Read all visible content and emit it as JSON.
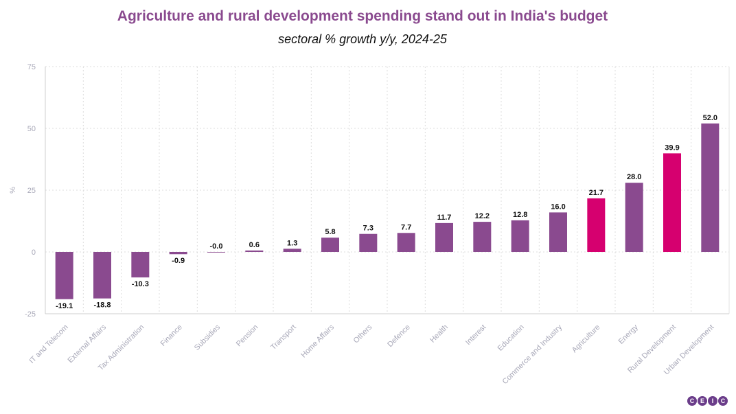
{
  "chart_data": {
    "type": "bar",
    "title": "Agriculture and rural development spending stand out in India's budget",
    "subtitle": "sectoral % growth y/y, 2024-25",
    "ylabel": "%",
    "xlabel": "",
    "ylim": [
      -25,
      75
    ],
    "yticks": [
      -25,
      0,
      25,
      50,
      75
    ],
    "grid": true,
    "categories": [
      "IT and Telecom",
      "External Affairs",
      "Tax Administration",
      "Finance",
      "Subsidies",
      "Pension",
      "Transport",
      "Home Affairs",
      "Others",
      "Defence",
      "Health",
      "Interest",
      "Education",
      "Commerce and Industry",
      "Agriculture",
      "Energy",
      "Rural Development",
      "Urban Development"
    ],
    "values": [
      -19.1,
      -18.8,
      -10.3,
      -0.9,
      -0.0,
      0.6,
      1.3,
      5.8,
      7.3,
      7.7,
      11.7,
      12.2,
      12.8,
      16.0,
      21.7,
      28.0,
      39.9,
      52.0
    ],
    "value_labels": [
      "-19.1",
      "-18.8",
      "-10.3",
      "-0.9",
      "-0.0",
      "0.6",
      "1.3",
      "5.8",
      "7.3",
      "7.7",
      "11.7",
      "12.2",
      "12.8",
      "16.0",
      "21.7",
      "28.0",
      "39.9",
      "52.0"
    ],
    "highlight": [
      "Agriculture",
      "Rural Development"
    ],
    "colors": {
      "default": "#8a4a8f",
      "highlight": "#d6006f"
    }
  },
  "logo": {
    "letters": [
      "C",
      "E",
      "I",
      "C"
    ]
  }
}
